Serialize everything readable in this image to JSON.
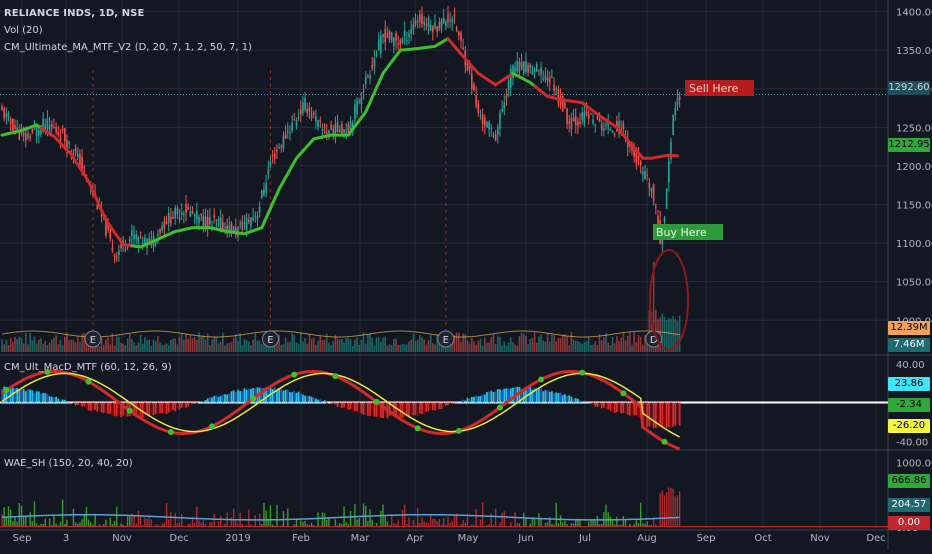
{
  "header": {
    "title": "RELIANCE INDS, 1D, NSE",
    "volume_indicator": "Vol (20)",
    "ma_indicator": "CM_Ultimate_MA_MTF_V2 (D, 20, 7, 1, 2, 50, 7, 1)",
    "macd_indicator": "CM_Ult_MacD_MTF (60, 12, 26, 9)",
    "wae_indicator": "WAE_SH (150, 20, 40, 20)"
  },
  "colors": {
    "background": "#131722",
    "up": "#26a69a",
    "down": "#ef5350",
    "ma_up": "#3fbf2e",
    "ma_down": "#d12a2a",
    "sell_box": "#b71c1c",
    "buy_box": "#2e9b3a",
    "grid": "#262b38"
  },
  "chart_data": [
    {
      "type": "candlestick",
      "x_axis": [
        "Sep",
        "3",
        "Nov",
        "Dec",
        "2019",
        "Feb",
        "Mar",
        "Apr",
        "May",
        "Jun",
        "Jul",
        "Aug",
        "Sep",
        "Oct",
        "Nov",
        "Dec"
      ],
      "y_ticks": [
        1000.0,
        1050.0,
        1100.0,
        1150.0,
        1200.0,
        1250.0,
        1300.0,
        1350.0,
        1400.0
      ],
      "ylim": [
        955,
        1415
      ],
      "close_anchors": [
        [
          0,
          1270
        ],
        [
          10,
          1235
        ],
        [
          20,
          1255
        ],
        [
          28,
          1240
        ],
        [
          36,
          1205
        ],
        [
          44,
          1150
        ],
        [
          52,
          1085
        ],
        [
          60,
          1110
        ],
        [
          68,
          1100
        ],
        [
          76,
          1130
        ],
        [
          84,
          1145
        ],
        [
          92,
          1130
        ],
        [
          100,
          1125
        ],
        [
          108,
          1115
        ],
        [
          118,
          1140
        ],
        [
          124,
          1205
        ],
        [
          132,
          1245
        ],
        [
          140,
          1280
        ],
        [
          148,
          1245
        ],
        [
          160,
          1250
        ],
        [
          168,
          1310
        ],
        [
          176,
          1370
        ],
        [
          184,
          1360
        ],
        [
          192,
          1390
        ],
        [
          200,
          1380
        ],
        [
          208,
          1395
        ],
        [
          216,
          1320
        ],
        [
          220,
          1265
        ],
        [
          228,
          1240
        ],
        [
          236,
          1330
        ],
        [
          246,
          1325
        ],
        [
          254,
          1310
        ],
        [
          262,
          1255
        ],
        [
          270,
          1265
        ],
        [
          278,
          1250
        ],
        [
          286,
          1250
        ],
        [
          294,
          1200
        ],
        [
          300,
          1170
        ],
        [
          304,
          1105
        ],
        [
          306,
          1140
        ],
        [
          308,
          1200
        ],
        [
          310,
          1270
        ],
        [
          313,
          1292
        ]
      ],
      "ma_anchors": [
        [
          0,
          1240
        ],
        [
          8,
          1245
        ],
        [
          16,
          1253
        ],
        [
          24,
          1238
        ],
        [
          32,
          1215
        ],
        [
          40,
          1180
        ],
        [
          48,
          1130
        ],
        [
          56,
          1098
        ],
        [
          64,
          1095
        ],
        [
          72,
          1105
        ],
        [
          80,
          1115
        ],
        [
          88,
          1120
        ],
        [
          96,
          1120
        ],
        [
          104,
          1115
        ],
        [
          112,
          1112
        ],
        [
          120,
          1120
        ],
        [
          128,
          1170
        ],
        [
          136,
          1210
        ],
        [
          144,
          1235
        ],
        [
          152,
          1240
        ],
        [
          160,
          1240
        ],
        [
          168,
          1270
        ],
        [
          176,
          1320
        ],
        [
          184,
          1350
        ],
        [
          192,
          1352
        ],
        [
          200,
          1355
        ],
        [
          206,
          1365
        ],
        [
          212,
          1345
        ],
        [
          220,
          1320
        ],
        [
          228,
          1305
        ],
        [
          236,
          1320
        ],
        [
          244,
          1308
        ],
        [
          252,
          1290
        ],
        [
          260,
          1285
        ],
        [
          268,
          1282
        ],
        [
          276,
          1265
        ],
        [
          284,
          1250
        ],
        [
          290,
          1230
        ],
        [
          296,
          1210
        ],
        [
          300,
          1210
        ],
        [
          304,
          1212
        ],
        [
          308,
          1214
        ],
        [
          312,
          1213
        ]
      ],
      "ma_color_segments": [
        [
          0,
          18,
          "green"
        ],
        [
          18,
          60,
          "red"
        ],
        [
          60,
          120,
          "green"
        ],
        [
          120,
          206,
          "green"
        ],
        [
          206,
          236,
          "red"
        ],
        [
          236,
          246,
          "green"
        ],
        [
          246,
          312,
          "red"
        ]
      ],
      "last_close": "1292.60",
      "ma_value": "1212.95",
      "earnings_markers": [
        "E",
        "E",
        "E",
        "D"
      ],
      "annotations": [
        {
          "text": "Sell Here",
          "kind": "sell"
        },
        {
          "text": "Buy Here",
          "kind": "buy"
        }
      ]
    },
    {
      "type": "bar",
      "name": "Volume",
      "last_volume": "12.39M",
      "volume_ma": "7.46M"
    },
    {
      "type": "histogram+line",
      "name": "MACD",
      "y_ticks": [
        40.0,
        -40.0
      ],
      "ylim": [
        -48,
        48
      ],
      "values": {
        "histogram": "23.86",
        "macd": "-2.34",
        "signal": "-26.20"
      }
    },
    {
      "type": "histogram+line",
      "name": "WAE",
      "y_ticks": [
        1000.0,
        0.0
      ],
      "ylim": [
        0,
        1100
      ],
      "values": {
        "trend_up": "666.86",
        "explosion": "204.57",
        "dead_zone": "0.00"
      }
    }
  ]
}
